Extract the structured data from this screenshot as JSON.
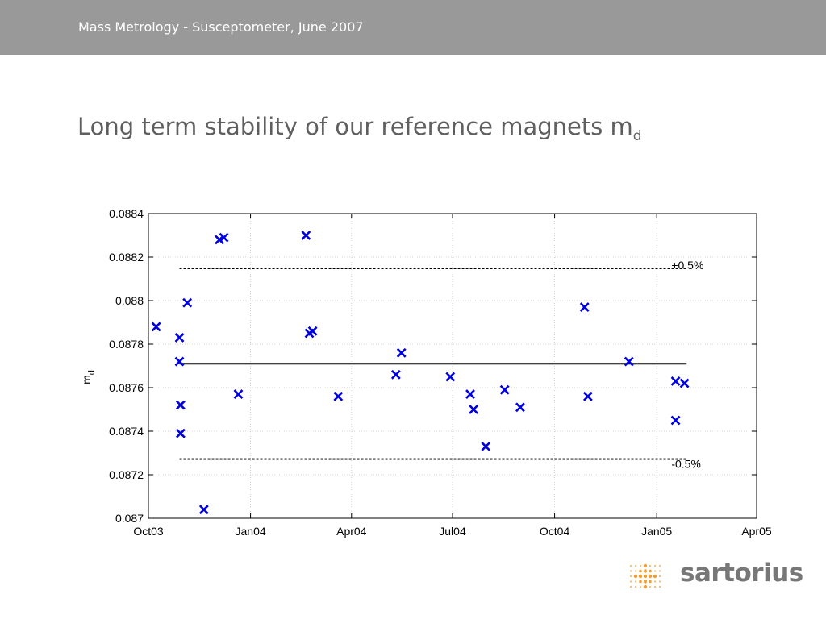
{
  "header": {
    "title": "Mass Metrology - Susceptometer, June 2007"
  },
  "slide": {
    "title_main": "Long term stability of our reference magnets m",
    "title_sub": "d"
  },
  "brand": {
    "logo_text": "sartorius",
    "logo_icon": "dot-grid-icon",
    "logo_color": "#f0a030",
    "header_color": "#999999"
  },
  "chart_data": {
    "type": "scatter",
    "title": "",
    "xlabel": "",
    "ylabel": {
      "main": "m",
      "sub": "d"
    },
    "x_ticks": [
      {
        "label": "Oct03",
        "value": "2003-10-01"
      },
      {
        "label": "Jan04",
        "value": "2004-01-01"
      },
      {
        "label": "Apr04",
        "value": "2004-04-01"
      },
      {
        "label": "Jul04",
        "value": "2004-07-01"
      },
      {
        "label": "Oct04",
        "value": "2004-10-01"
      },
      {
        "label": "Jan05",
        "value": "2005-01-01"
      },
      {
        "label": "Apr05",
        "value": "2005-04-01"
      }
    ],
    "xlim": [
      "2003-10-01",
      "2005-04-01"
    ],
    "y_ticks": [
      "0.087",
      "0.0872",
      "0.0874",
      "0.0876",
      "0.0878",
      "0.088",
      "0.0882",
      "0.0884"
    ],
    "ylim": [
      0.087,
      0.0884
    ],
    "grid": true,
    "marker": "x",
    "marker_color": "#0000dd",
    "points": [
      {
        "x": "2003-10-08",
        "y": 0.08788
      },
      {
        "x": "2003-10-29",
        "y": 0.08783
      },
      {
        "x": "2003-10-29",
        "y": 0.08772
      },
      {
        "x": "2003-10-30",
        "y": 0.08752
      },
      {
        "x": "2003-10-30",
        "y": 0.08739
      },
      {
        "x": "2003-11-05",
        "y": 0.08799
      },
      {
        "x": "2003-11-20",
        "y": 0.08704
      },
      {
        "x": "2003-12-04",
        "y": 0.08828
      },
      {
        "x": "2003-12-08",
        "y": 0.08829
      },
      {
        "x": "2003-12-21",
        "y": 0.08757
      },
      {
        "x": "2004-02-20",
        "y": 0.0883
      },
      {
        "x": "2004-02-23",
        "y": 0.08785
      },
      {
        "x": "2004-02-26",
        "y": 0.08786
      },
      {
        "x": "2004-03-20",
        "y": 0.08756
      },
      {
        "x": "2004-05-11",
        "y": 0.08766
      },
      {
        "x": "2004-05-16",
        "y": 0.08776
      },
      {
        "x": "2004-06-29",
        "y": 0.08765
      },
      {
        "x": "2004-07-17",
        "y": 0.08757
      },
      {
        "x": "2004-07-20",
        "y": 0.0875
      },
      {
        "x": "2004-07-31",
        "y": 0.08733
      },
      {
        "x": "2004-08-17",
        "y": 0.08759
      },
      {
        "x": "2004-08-31",
        "y": 0.08751
      },
      {
        "x": "2004-10-28",
        "y": 0.08797
      },
      {
        "x": "2004-10-31",
        "y": 0.08756
      },
      {
        "x": "2004-12-07",
        "y": 0.08772
      },
      {
        "x": "2005-01-18",
        "y": 0.08745
      },
      {
        "x": "2005-01-18",
        "y": 0.08763
      },
      {
        "x": "2005-01-26",
        "y": 0.08762
      }
    ],
    "reference_lines": [
      {
        "name": "mean",
        "y": 0.08771,
        "style": "solid",
        "x_start": "2003-10-29",
        "x_end": "2005-01-28"
      },
      {
        "name": "+0.5%",
        "label": "+0.5%",
        "y": 0.088148,
        "style": "dashed",
        "x_start": "2003-10-29",
        "x_end": "2005-01-28"
      },
      {
        "name": "-0.5%",
        "label": "-0.5%",
        "y": 0.087272,
        "style": "dashed",
        "x_start": "2003-10-29",
        "x_end": "2005-01-28"
      }
    ]
  }
}
